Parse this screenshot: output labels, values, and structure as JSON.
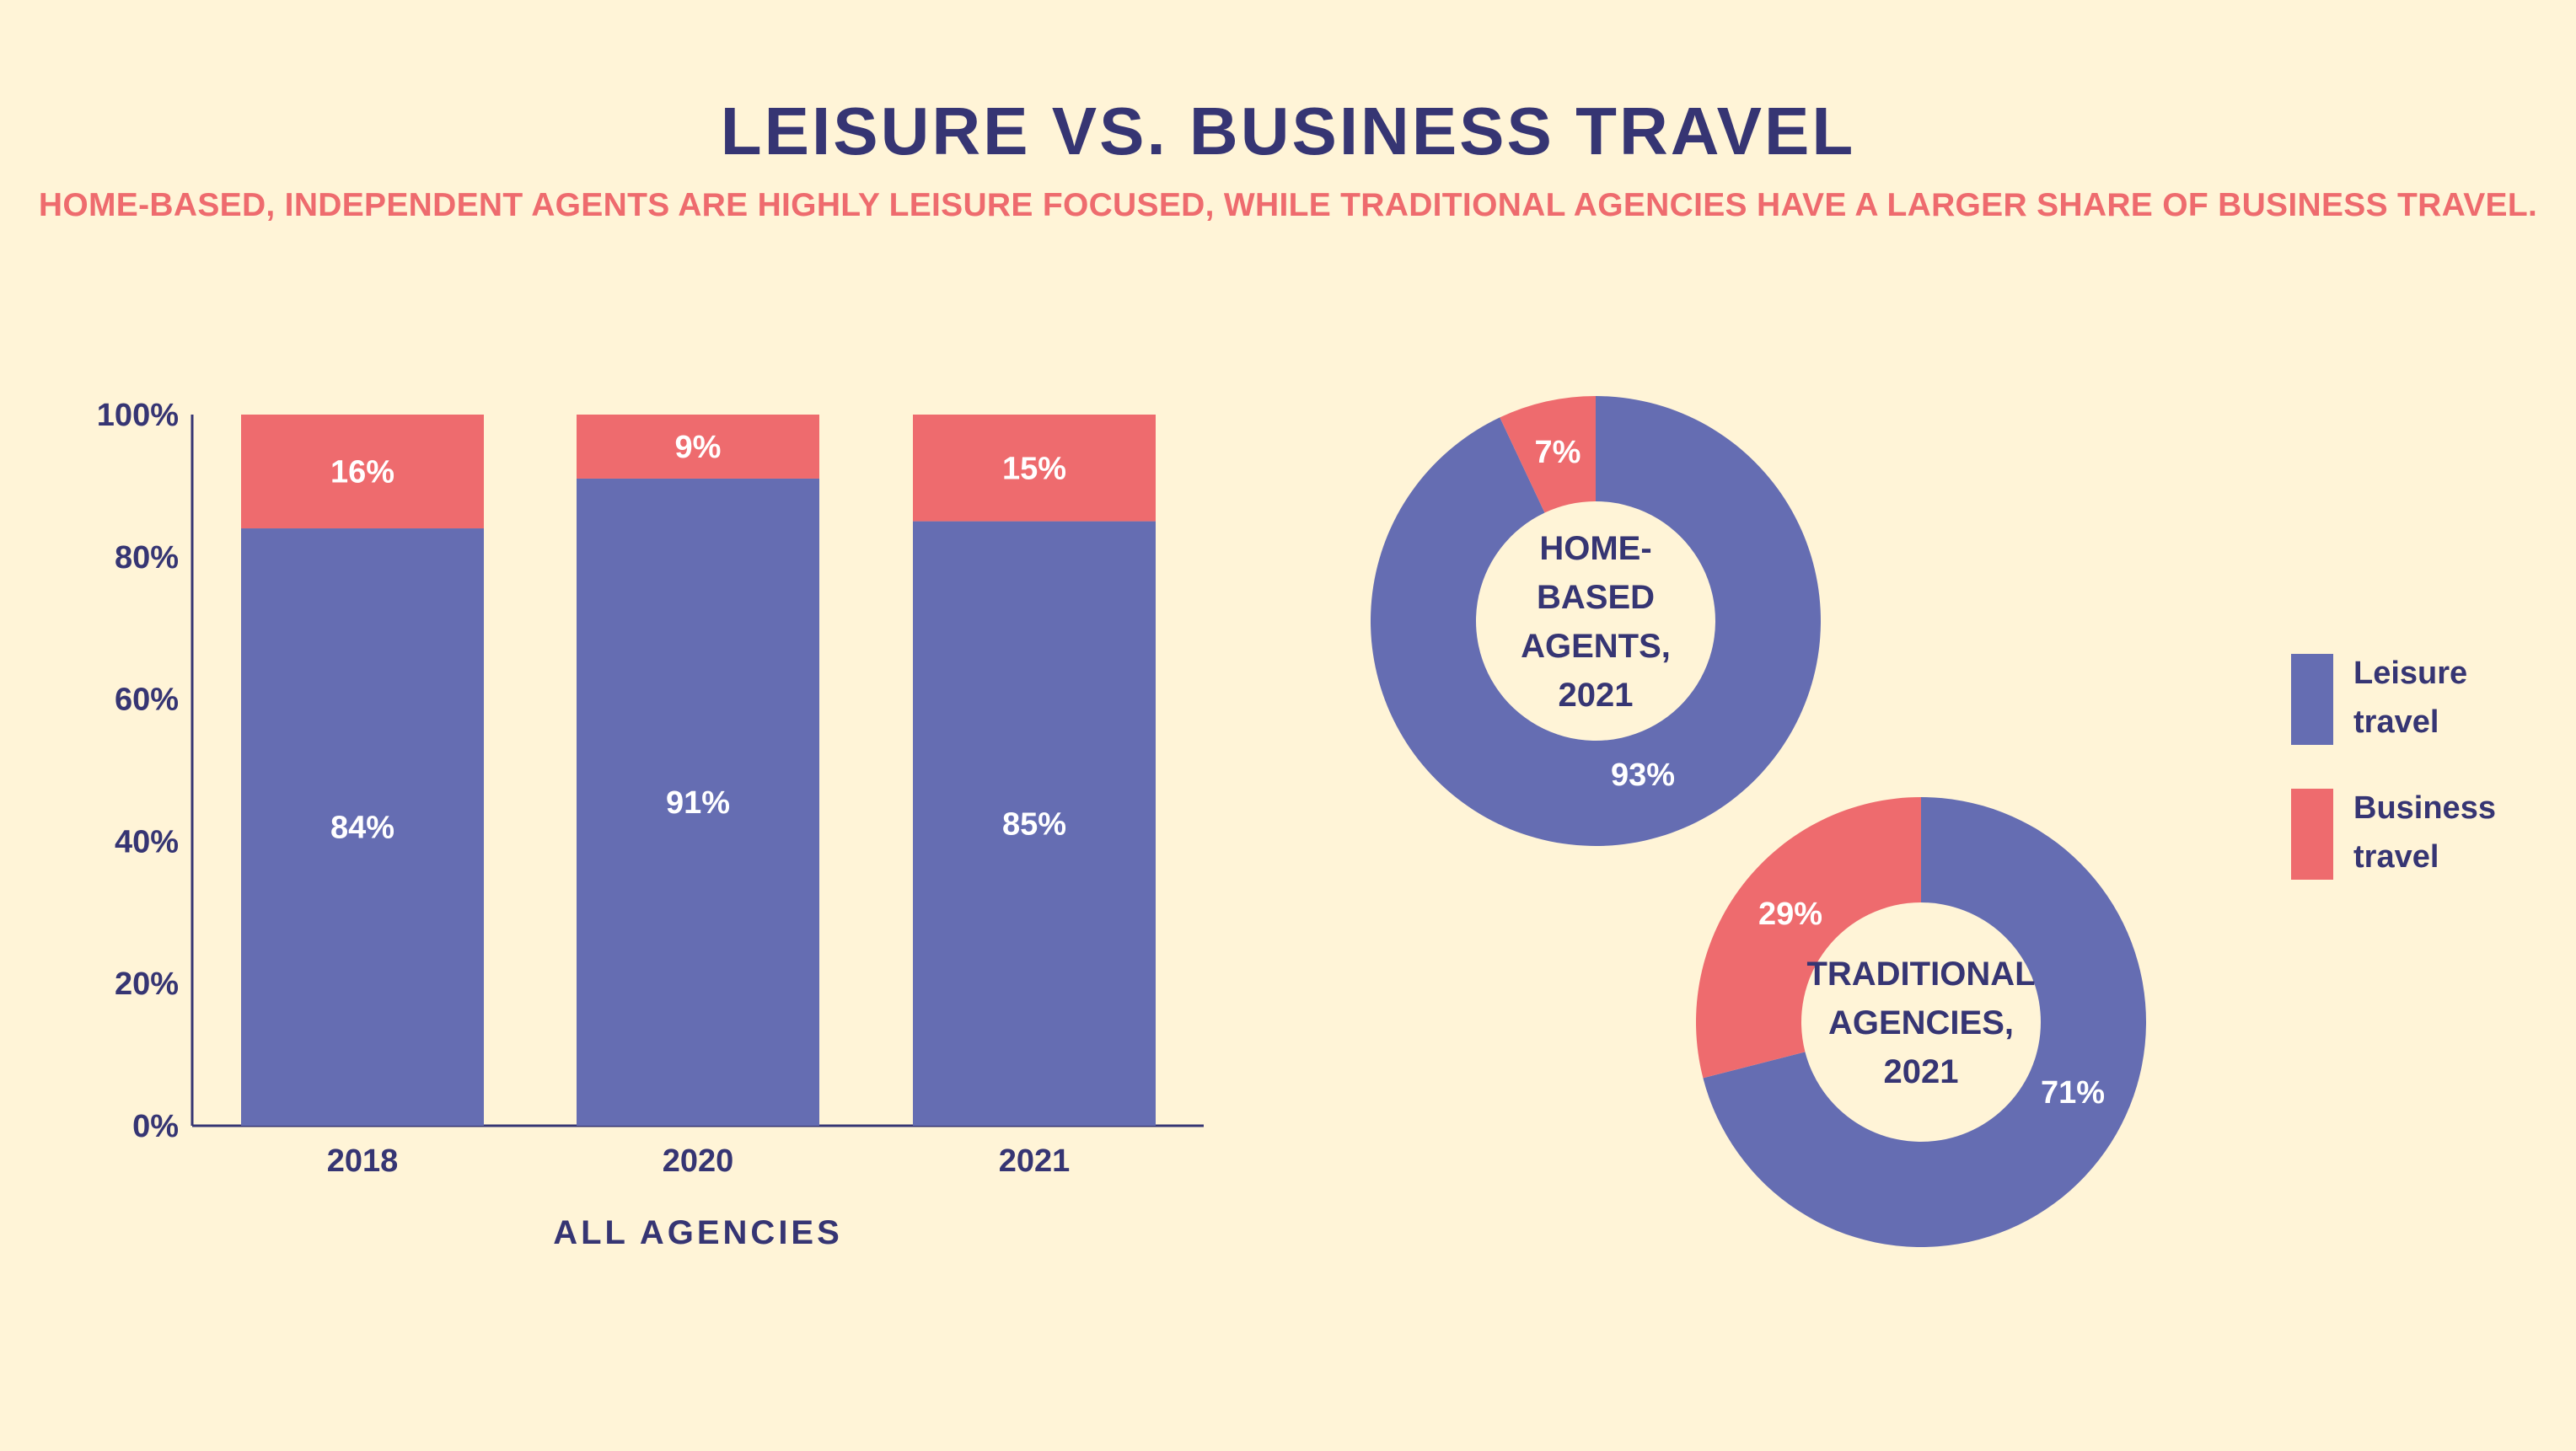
{
  "title": "LEISURE VS. BUSINESS TRAVEL",
  "subtitle": "HOME-BASED, INDEPENDENT AGENTS ARE HIGHLY LEISURE FOCUSED, WHILE TRADITIONAL AGENCIES HAVE A LARGER SHARE OF BUSINESS TRAVEL.",
  "colors": {
    "leisure": "#656db2",
    "business": "#ee6b6e",
    "text": "#363573",
    "background": "#fff4d7"
  },
  "legend": [
    {
      "label": "Leisure travel",
      "color": "#656db2"
    },
    {
      "label": "Business travel",
      "color": "#ee6b6e"
    }
  ],
  "chart_data": [
    {
      "type": "bar",
      "stacked": true,
      "xlabel": "ALL AGENCIES",
      "categories": [
        "2018",
        "2020",
        "2021"
      ],
      "series": [
        {
          "name": "Leisure travel",
          "values": [
            84,
            91,
            85
          ],
          "labels": [
            "84%",
            "91%",
            "85%"
          ]
        },
        {
          "name": "Business travel",
          "values": [
            16,
            9,
            15
          ],
          "labels": [
            "16%",
            "9%",
            "15%"
          ]
        }
      ],
      "yticks": [
        "0%",
        "20%",
        "40%",
        "60%",
        "80%",
        "100%"
      ],
      "ylim": [
        0,
        100
      ]
    },
    {
      "type": "pie",
      "center_label": [
        "HOME-",
        "BASED",
        "AGENTS,",
        "2021"
      ],
      "slices": [
        {
          "name": "Leisure travel",
          "value": 93,
          "label": "93%"
        },
        {
          "name": "Business travel",
          "value": 7,
          "label": "7%"
        }
      ]
    },
    {
      "type": "pie",
      "center_label": [
        "TRADITIONAL",
        "AGENCIES,",
        "2021"
      ],
      "slices": [
        {
          "name": "Leisure travel",
          "value": 71,
          "label": "71%"
        },
        {
          "name": "Business travel",
          "value": 29,
          "label": "29%"
        }
      ]
    }
  ]
}
